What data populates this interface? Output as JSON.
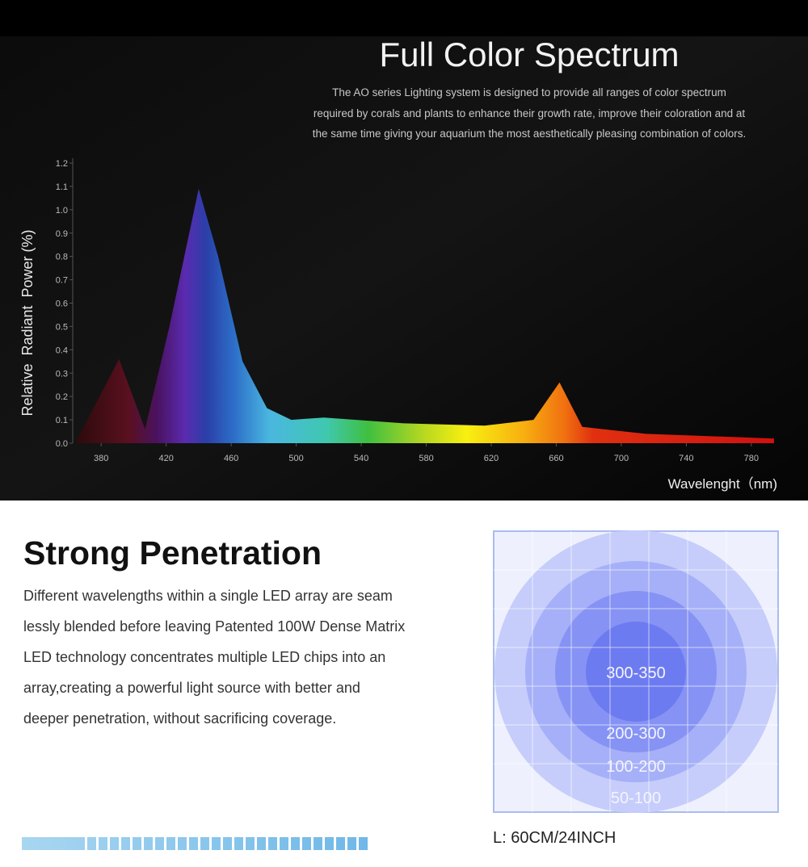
{
  "header": {
    "title": "Full Color Spectrum",
    "description": [
      "The AO series Lighting system is designed to provide all ranges of color spectrum",
      "required by corals and plants to enhance their growth rate, improve their coloration and at",
      "the same time giving your aquarium the most aesthetically pleasing combination of colors."
    ]
  },
  "chart_data": {
    "type": "area",
    "x_label": "Wavelenght（nm)",
    "y_label": "Relative  Radiant  Power (%)",
    "x": [
      364,
      391,
      407,
      422,
      440,
      452,
      467,
      482,
      497,
      517,
      537,
      566,
      616,
      646,
      662,
      676,
      715,
      794
    ],
    "values": [
      0.0,
      0.36,
      0.06,
      0.5,
      1.09,
      0.8,
      0.35,
      0.15,
      0.1,
      0.11,
      0.1,
      0.085,
      0.075,
      0.1,
      0.26,
      0.07,
      0.04,
      0.02
    ],
    "xlim": [
      362,
      795
    ],
    "xticks": [
      380,
      420,
      460,
      500,
      540,
      580,
      620,
      660,
      700,
      740,
      780
    ],
    "ylim": [
      0,
      1.2
    ],
    "yticks": [
      {
        "value": 0,
        "label": "0.0"
      },
      0.1,
      0.2,
      0.3,
      0.4,
      0.5,
      0.6,
      0.7,
      0.8,
      0.9,
      {
        "value": 1,
        "label": "1.0"
      },
      1.1,
      1.2
    ]
  },
  "penetration": {
    "title": "Strong Penetration",
    "text": [
      "Different wavelengths within a single LED array are seam",
      "lessly blended before leaving Patented 100W Dense Matrix",
      "LED technology concentrates multiple LED chips into an",
      "array,creating a powerful light source with better and",
      "deeper penetration, without sacrificing coverage."
    ],
    "zones": [
      "300-350",
      "200-300",
      "100-200",
      "50-100"
    ],
    "length": "L: 60CM/24INCH"
  }
}
